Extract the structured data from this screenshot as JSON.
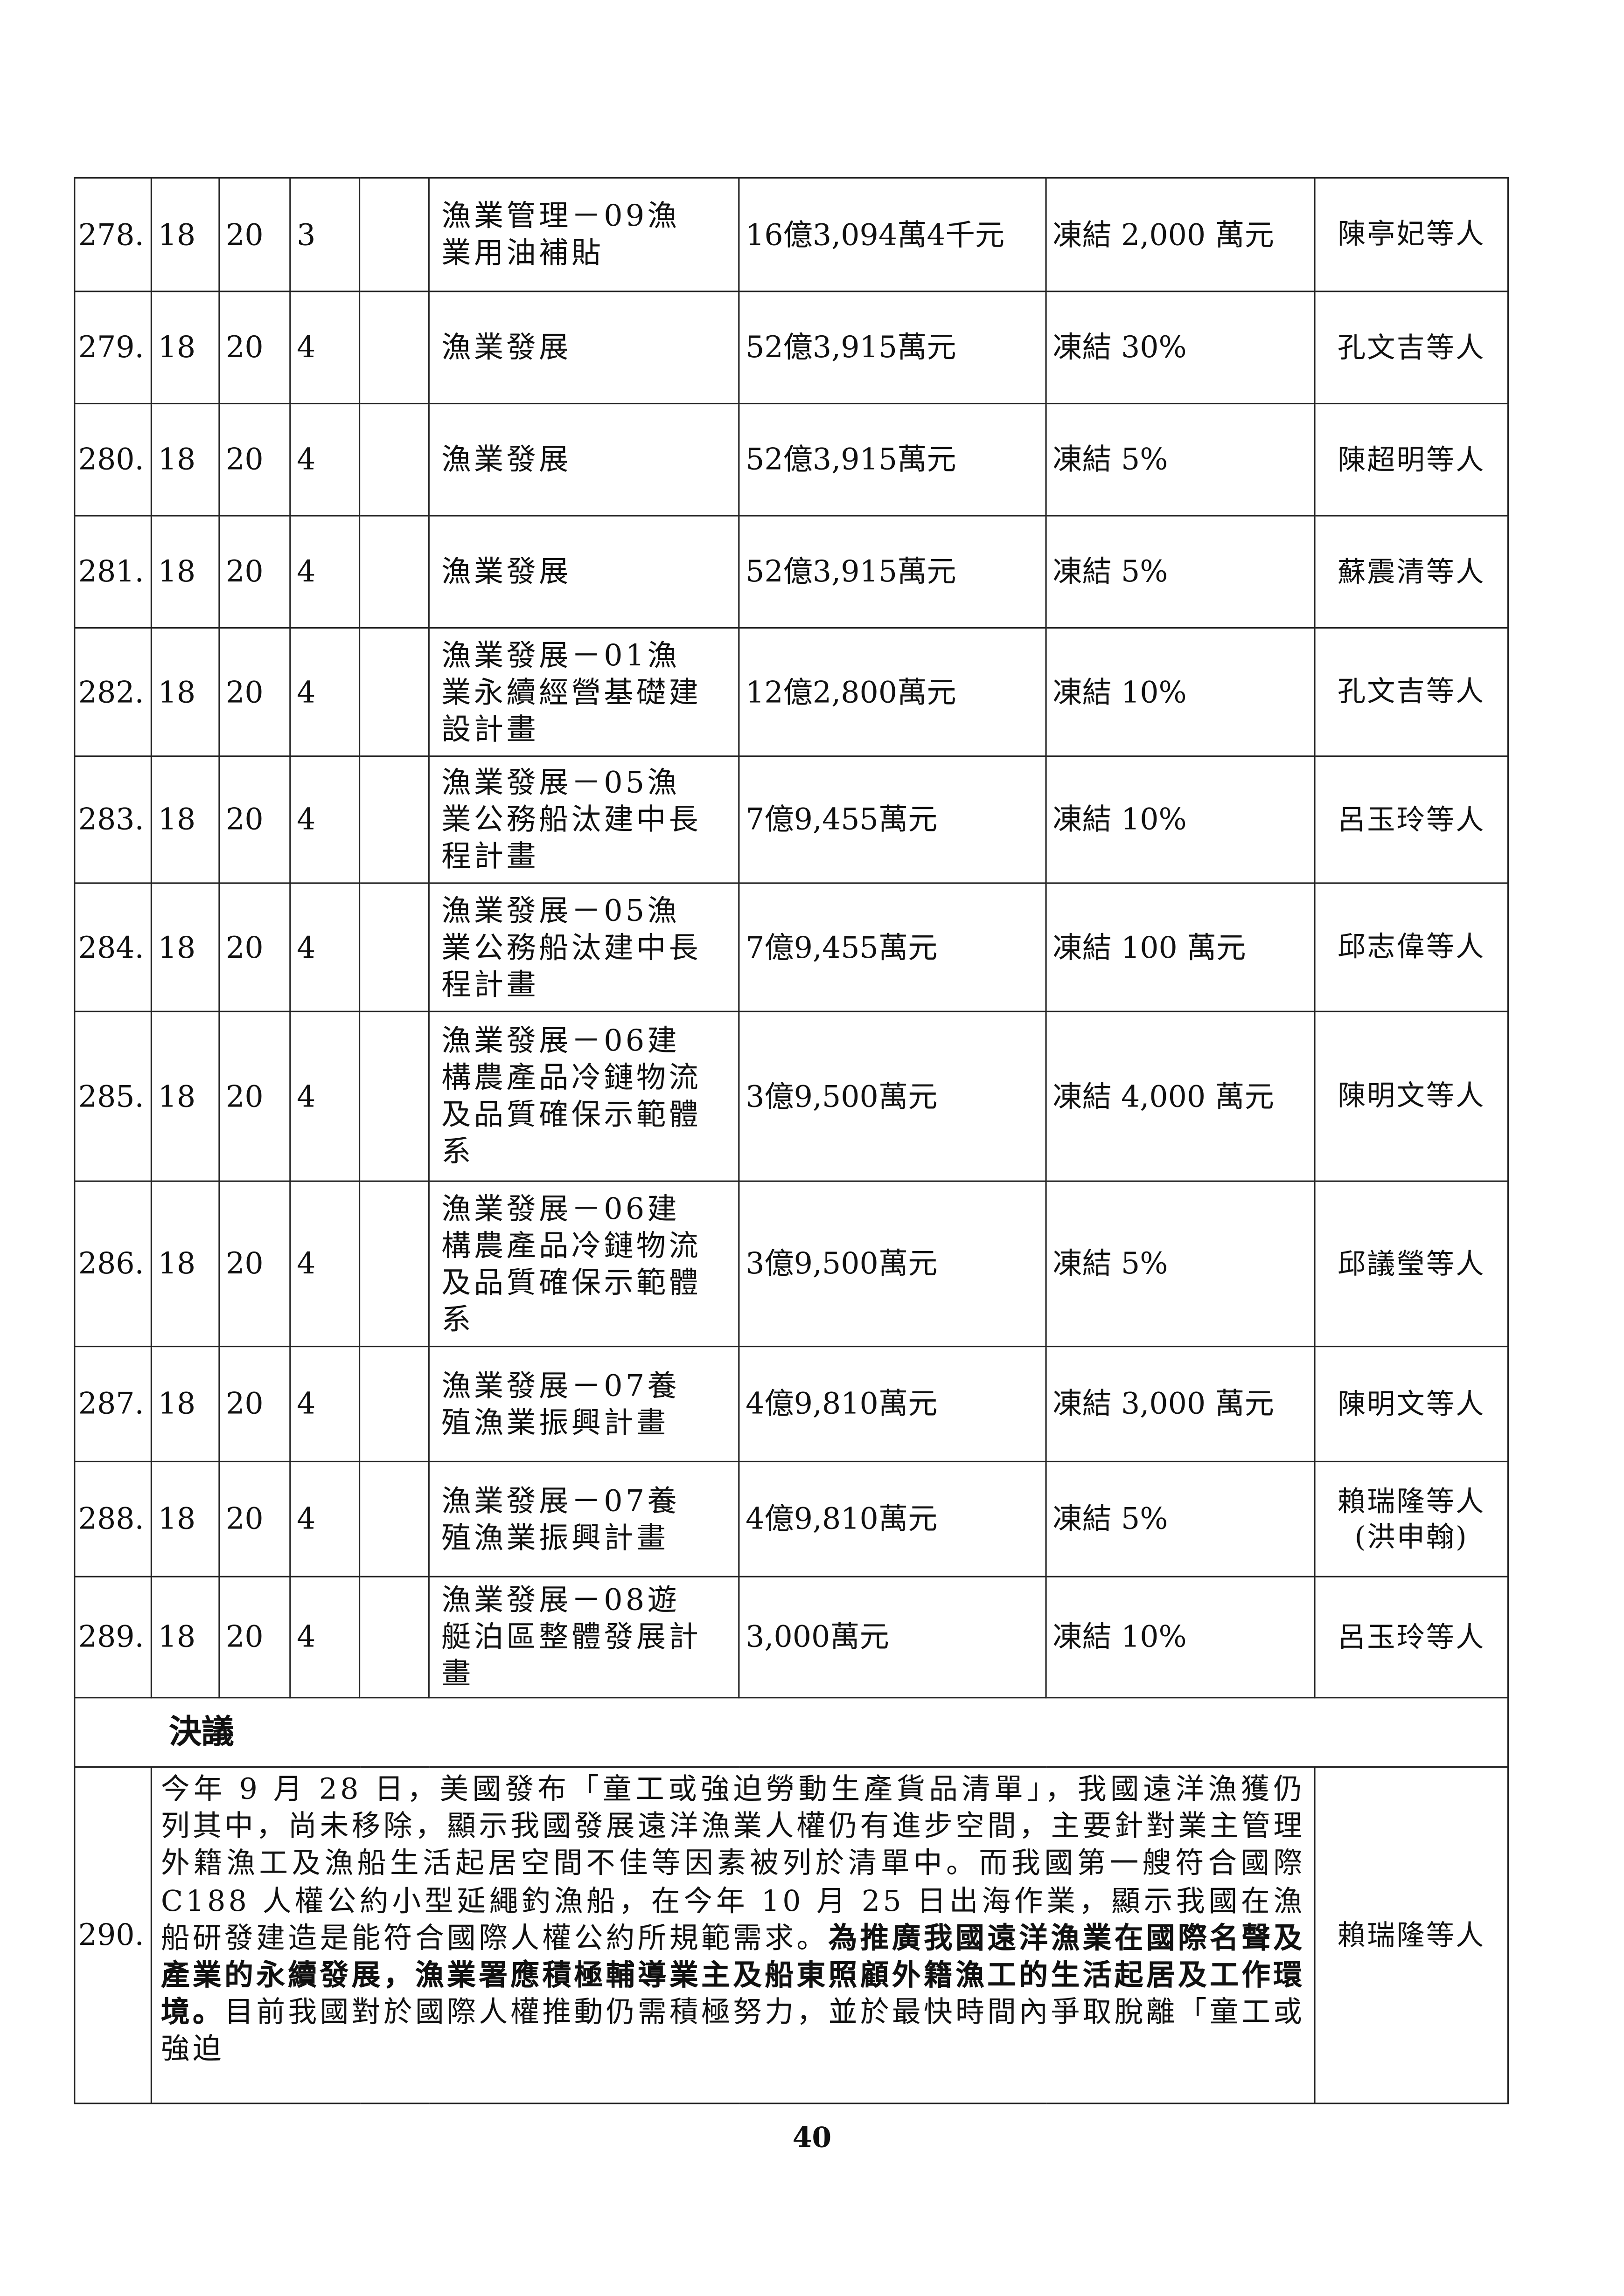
{
  "rows": [
    {
      "no": "278.",
      "a": "18",
      "b": "20",
      "c": "3",
      "d": "",
      "item": "漁業管理－09漁\n業用油補貼",
      "amount": "16億3,094萬4千元",
      "action": "凍結 2,000 萬元",
      "proposer": "陳亭妃等人"
    },
    {
      "no": "279.",
      "a": "18",
      "b": "20",
      "c": "4",
      "d": "",
      "item": "漁業發展",
      "amount": "52億3,915萬元",
      "action": "凍結 30%",
      "proposer": "孔文吉等人"
    },
    {
      "no": "280.",
      "a": "18",
      "b": "20",
      "c": "4",
      "d": "",
      "item": "漁業發展",
      "amount": "52億3,915萬元",
      "action": "凍結 5%",
      "proposer": "陳超明等人"
    },
    {
      "no": "281.",
      "a": "18",
      "b": "20",
      "c": "4",
      "d": "",
      "item": "漁業發展",
      "amount": "52億3,915萬元",
      "action": "凍結 5%",
      "proposer": "蘇震清等人"
    },
    {
      "no": "282.",
      "a": "18",
      "b": "20",
      "c": "4",
      "d": "",
      "item": "漁業發展－01漁\n業永續經營基礎建\n設計畫",
      "amount": "12億2,800萬元",
      "action": "凍結 10%",
      "proposer": "孔文吉等人"
    },
    {
      "no": "283.",
      "a": "18",
      "b": "20",
      "c": "4",
      "d": "",
      "item": "漁業發展－05漁\n業公務船汰建中長\n程計畫",
      "amount": "7億9,455萬元",
      "action": "凍結 10%",
      "proposer": "呂玉玲等人"
    },
    {
      "no": "284.",
      "a": "18",
      "b": "20",
      "c": "4",
      "d": "",
      "item": "漁業發展－05漁\n業公務船汰建中長\n程計畫",
      "amount": "7億9,455萬元",
      "action": "凍結 100 萬元",
      "proposer": "邱志偉等人"
    },
    {
      "no": "285.",
      "a": "18",
      "b": "20",
      "c": "4",
      "d": "",
      "item": "漁業發展－06建\n構農產品冷鏈物流\n及品質確保示範體\n系",
      "amount": "3億9,500萬元",
      "action": "凍結 4,000 萬元",
      "proposer": "陳明文等人"
    },
    {
      "no": "286.",
      "a": "18",
      "b": "20",
      "c": "4",
      "d": "",
      "item": "漁業發展－06建\n構農產品冷鏈物流\n及品質確保示範體\n系",
      "amount": "3億9,500萬元",
      "action": "凍結 5%",
      "proposer": "邱議瑩等人"
    },
    {
      "no": "287.",
      "a": "18",
      "b": "20",
      "c": "4",
      "d": "",
      "item": "漁業發展－07養\n殖漁業振興計畫",
      "amount": "4億9,810萬元",
      "action": "凍結 3,000 萬元",
      "proposer": "陳明文等人"
    },
    {
      "no": "288.",
      "a": "18",
      "b": "20",
      "c": "4",
      "d": "",
      "item": "漁業發展－07養\n殖漁業振興計畫",
      "amount": "4億9,810萬元",
      "action": "凍結 5%",
      "proposer": "賴瑞隆等人\n(洪申翰)"
    },
    {
      "no": "289.",
      "a": "18",
      "b": "20",
      "c": "4",
      "d": "",
      "item": "漁業發展－08遊\n艇泊區整體發展計\n畫",
      "amount": "3,000萬元",
      "action": "凍結 10%",
      "proposer": "呂玉玲等人"
    }
  ],
  "resolution_heading": "決議",
  "motion": {
    "no": "290.",
    "text_before": "今年 9 月 28 日，美國發布「童工或強迫勞動生產貨品清單」，我國遠洋漁獲仍列其中，尚未移除，顯示我國發展遠洋漁業人權仍有進步空間，主要針對業主管理外籍漁工及漁船生活起居空間不佳等因素被列於清單中。而我國第一艘符合國際 C188 人權公約小型延繩釣漁船，在今年 10 月 25 日出海作業，顯示我國在漁船研發建造是能符合國際人權公約所規範需求。",
    "text_bold": "為推廣我國遠洋漁業在國際名聲及產業的永續發展，漁業署應積極輔導業主及船東照顧外籍漁工的生活起居及工作環境。",
    "text_after": "目前我國對於國際人權推動仍需積極努力，並於最快時間內爭取脫離「童工或強迫",
    "proposer": "賴瑞隆等人"
  },
  "page_number": "40"
}
